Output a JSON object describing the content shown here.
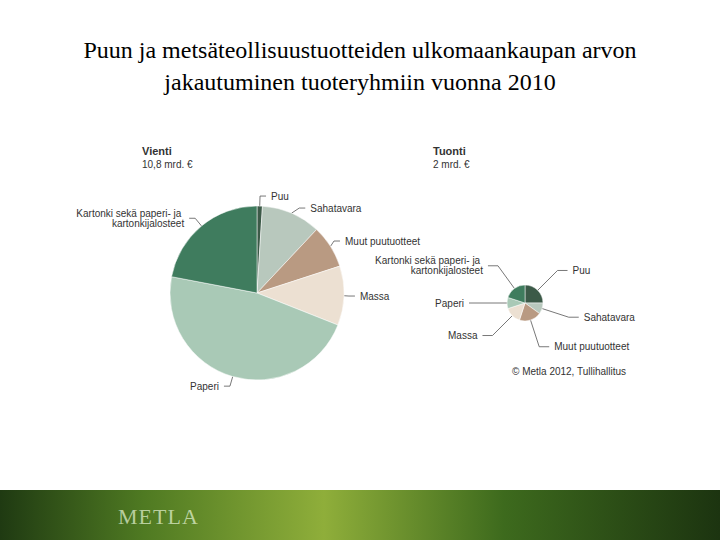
{
  "title": "Puun ja metsäteollisuustuotteiden ulkomaankaupan arvon jakautuminen tuoteryhmiin vuonna 2010",
  "source": "© Metla 2012, Tullihallitus",
  "footer": "METLA",
  "chart_data": [
    {
      "type": "pie",
      "title": "Vienti",
      "subtitle": "10,8 mrd. €",
      "categories": [
        "Puu",
        "Sahatavara",
        "Muut puutuotteet",
        "Massa",
        "Paperi",
        "Kartonki sekä paperi- ja kartonkijalosteet"
      ],
      "values": [
        1,
        11,
        8,
        11,
        47,
        22
      ],
      "colors": [
        "#3c5a48",
        "#b8c8bd",
        "#b99a82",
        "#ece0d2",
        "#a9c9b6",
        "#3f7c5e"
      ],
      "data_labels": false
    },
    {
      "type": "pie",
      "title": "Tuonti",
      "subtitle": "2 mrd. €",
      "categories": [
        "Puu",
        "Sahatavara",
        "Muut puutuotteet",
        "Massa",
        "Paperi",
        "Kartonki sekä paperi- ja kartonkijalosteet"
      ],
      "values": [
        25,
        10,
        20,
        15,
        10,
        20
      ],
      "colors": [
        "#3c5a48",
        "#b8c8bd",
        "#b99a82",
        "#ece0d2",
        "#a9c9b6",
        "#3f7c5e"
      ],
      "data_labels": false
    }
  ]
}
